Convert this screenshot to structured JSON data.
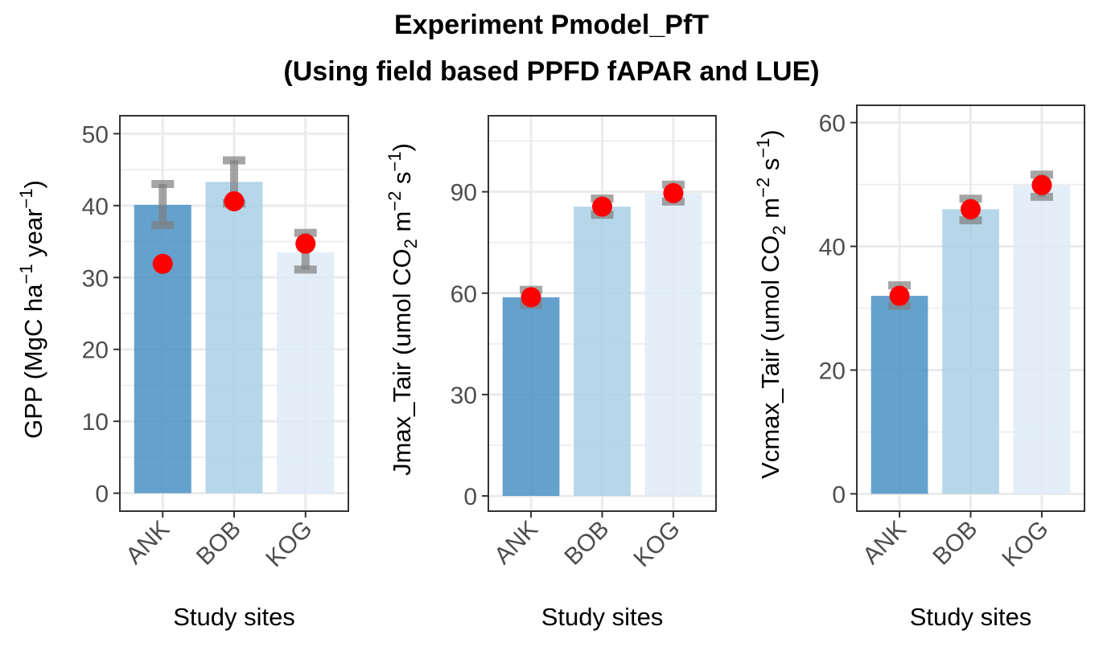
{
  "title_lines": [
    "Experiment Pmodel_PfT",
    "(Using field based PPFD fAPAR and LUE)"
  ],
  "colors": {
    "bar_fills": [
      "#4a90c4",
      "#a9d0e6",
      "#deebf7"
    ],
    "point": "#ff0000",
    "errorbar": "#7f7f7f",
    "grid": "#ebebeb",
    "panel_border": "#333333",
    "tick_text": "#4d4d4d"
  },
  "chart_data": [
    {
      "type": "bar",
      "categories": [
        "ANK",
        "BOB",
        "KOG"
      ],
      "bar_values": [
        40.1,
        43.3,
        33.5
      ],
      "error_low": [
        37.3,
        40.3,
        31.1
      ],
      "error_high": [
        43.0,
        46.3,
        36.2
      ],
      "point_values": [
        31.9,
        40.6,
        34.7
      ],
      "xlabel": "Study sites",
      "ylabel": {
        "main": "GPP (MgC ha",
        "sup1": "−1",
        "mid": " year",
        "sup2": "−1",
        "end": ")"
      },
      "ylim": [
        -2.5,
        52.5
      ],
      "yticks": [
        0,
        10,
        20,
        30,
        40,
        50
      ],
      "ytick_labels": [
        "0",
        "10",
        "20",
        "30",
        "40",
        "50"
      ],
      "grid": true,
      "legend": "none"
    },
    {
      "type": "bar",
      "categories": [
        "ANK",
        "BOB",
        "KOG"
      ],
      "bar_values": [
        58.8,
        85.6,
        89.6
      ],
      "error_low": [
        56.6,
        83.2,
        87.1
      ],
      "error_high": [
        61.0,
        88.0,
        92.1
      ],
      "point_values": [
        58.8,
        85.6,
        89.6
      ],
      "xlabel": "Study sites",
      "ylabel": {
        "main": "Jmax_Tair (umol CO",
        "sub": "2",
        "mid": " m",
        "sup1": "−2",
        "mid2": " s",
        "sup2": "−1",
        "end": ")"
      },
      "ylim": [
        -4.5,
        112.5
      ],
      "yticks": [
        0,
        30,
        60,
        90
      ],
      "ytick_labels": [
        "0",
        "30",
        "60",
        "90"
      ],
      "grid": true,
      "legend": "none"
    },
    {
      "type": "bar",
      "categories": [
        "ANK",
        "BOB",
        "KOG"
      ],
      "bar_values": [
        32.0,
        46.0,
        49.9
      ],
      "error_low": [
        30.4,
        44.2,
        48.0
      ],
      "error_high": [
        33.7,
        47.7,
        51.6
      ],
      "point_values": [
        32.0,
        46.0,
        49.9
      ],
      "xlabel": "Study sites",
      "ylabel": {
        "main": "Vcmax_Tair (umol CO",
        "sub": "2",
        "mid": " m",
        "sup1": "−2",
        "mid2": " s",
        "sup2": "−1",
        "end": ")"
      },
      "ylim": [
        -2.8,
        62.8
      ],
      "yticks": [
        0,
        20,
        40,
        60
      ],
      "ytick_labels": [
        "0",
        "20",
        "40",
        "60"
      ],
      "grid": true,
      "legend": "none"
    }
  ]
}
